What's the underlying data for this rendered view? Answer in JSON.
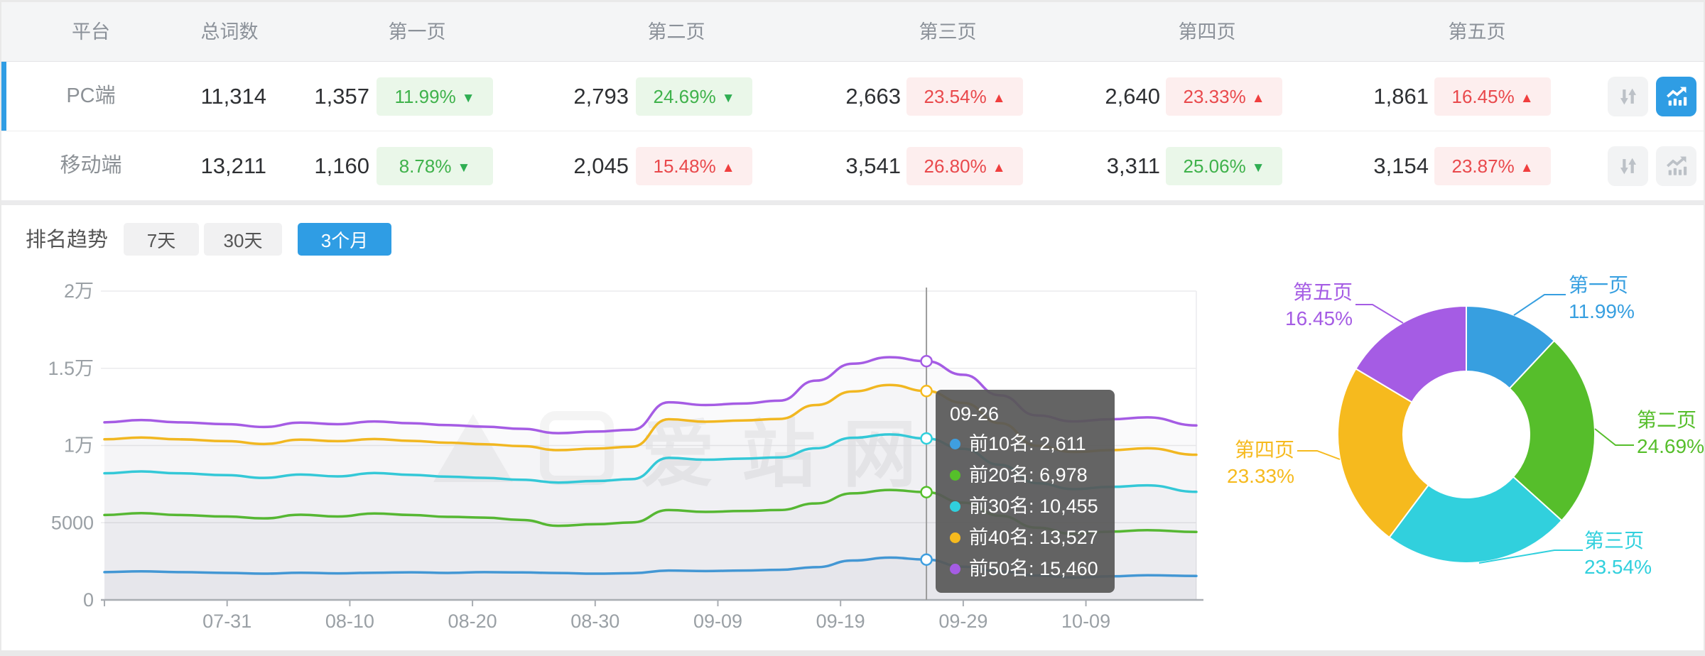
{
  "table": {
    "columns": [
      "平台",
      "总词数",
      "第一页",
      "第二页",
      "第三页",
      "第四页",
      "第五页"
    ],
    "rows": [
      {
        "platform": "PC端",
        "total": "11,314",
        "state": "active",
        "chart_btn_state": "active",
        "pages": [
          {
            "count": "1,357",
            "pct": "11.99%",
            "dir": "down",
            "arrow": "▼"
          },
          {
            "count": "2,793",
            "pct": "24.69%",
            "dir": "down",
            "arrow": "▼"
          },
          {
            "count": "2,663",
            "pct": "23.54%",
            "dir": "up",
            "arrow": "▲"
          },
          {
            "count": "2,640",
            "pct": "23.33%",
            "dir": "up",
            "arrow": "▲"
          },
          {
            "count": "1,861",
            "pct": "16.45%",
            "dir": "up",
            "arrow": "▲"
          }
        ]
      },
      {
        "platform": "移动端",
        "total": "13,211",
        "state": "",
        "chart_btn_state": "",
        "pages": [
          {
            "count": "1,160",
            "pct": "8.78%",
            "dir": "down",
            "arrow": "▼"
          },
          {
            "count": "2,045",
            "pct": "15.48%",
            "dir": "up",
            "arrow": "▲"
          },
          {
            "count": "3,541",
            "pct": "26.80%",
            "dir": "up",
            "arrow": "▲"
          },
          {
            "count": "3,311",
            "pct": "25.06%",
            "dir": "down",
            "arrow": "▼"
          },
          {
            "count": "3,154",
            "pct": "23.87%",
            "dir": "up",
            "arrow": "▲"
          }
        ]
      }
    ]
  },
  "trend": {
    "title": "排名趋势",
    "tabs": [
      {
        "label": "7天",
        "state": ""
      },
      {
        "label": "30天",
        "state": ""
      },
      {
        "label": "3个月",
        "state": "active"
      }
    ]
  },
  "tooltip": {
    "title": "09-26",
    "rows": [
      {
        "label": "前10名",
        "value": "2,611",
        "num": 2611,
        "color": "#3f9fe0"
      },
      {
        "label": "前20名",
        "value": "6,978",
        "num": 6978,
        "color": "#55c02a"
      },
      {
        "label": "前30名",
        "value": "10,455",
        "num": 10455,
        "color": "#30d0dd"
      },
      {
        "label": "前40名",
        "value": "13,527",
        "num": 13527,
        "color": "#f6ba1e"
      },
      {
        "label": "前50名",
        "value": "15,460",
        "num": 15460,
        "color": "#a55ce4"
      }
    ]
  },
  "watermark": "爱站网",
  "colors": {
    "accent_blue": "#2f9de4",
    "grid": "#ebebed",
    "axis": "#a9adb2",
    "tick_text": "#9aa0a5"
  },
  "chart_data": [
    {
      "type": "line",
      "title": "排名趋势 3个月 (ranking trend, 3 months)",
      "ylim": [
        0,
        20000
      ],
      "yticks": [
        "0",
        "5000",
        "1万",
        "1.5万",
        "2万"
      ],
      "xticks": [
        "07-31",
        "08-10",
        "08-20",
        "08-30",
        "09-09",
        "09-19",
        "09-29",
        "10-09"
      ],
      "xtick_days": [
        10,
        20,
        30,
        40,
        50,
        60,
        70,
        80
      ],
      "crosshair_date": "09-26",
      "crosshair_day": 67,
      "x_dates": [
        "07-21",
        "07-24",
        "07-27",
        "07-31",
        "08-03",
        "08-06",
        "08-09",
        "08-12",
        "08-15",
        "08-18",
        "08-21",
        "08-24",
        "08-27",
        "08-30",
        "09-02",
        "09-05",
        "09-08",
        "09-11",
        "09-14",
        "09-17",
        "09-20",
        "09-23",
        "09-26",
        "09-29",
        "10-02",
        "10-05",
        "10-08",
        "10-11",
        "10-14",
        "10-18"
      ],
      "x_days": [
        0,
        3,
        6,
        10,
        13,
        16,
        19,
        22,
        25,
        28,
        31,
        34,
        37,
        40,
        43,
        46,
        49,
        52,
        55,
        58,
        61,
        64,
        67,
        70,
        73,
        76,
        79,
        82,
        85,
        89
      ],
      "series": [
        {
          "name": "前10名",
          "color": "#3f9fe0",
          "values": [
            1800,
            1850,
            1800,
            1750,
            1700,
            1760,
            1720,
            1760,
            1790,
            1750,
            1800,
            1780,
            1740,
            1700,
            1730,
            1900,
            1870,
            1900,
            1950,
            2120,
            2550,
            2740,
            2611,
            2150,
            1850,
            1580,
            1450,
            1530,
            1600,
            1550
          ]
        },
        {
          "name": "前20名",
          "color": "#55c02a",
          "values": [
            5500,
            5620,
            5500,
            5400,
            5280,
            5520,
            5400,
            5600,
            5500,
            5380,
            5330,
            5180,
            4800,
            4900,
            5020,
            5820,
            5700,
            5760,
            5820,
            6250,
            6900,
            7120,
            6978,
            6300,
            5450,
            4680,
            4280,
            4420,
            4520,
            4400
          ]
        },
        {
          "name": "前30名",
          "color": "#30d0dd",
          "values": [
            8200,
            8320,
            8200,
            8080,
            7900,
            8120,
            8000,
            8220,
            8100,
            7980,
            7900,
            7780,
            7600,
            7700,
            7820,
            9200,
            9080,
            9150,
            9230,
            9820,
            10500,
            10720,
            10455,
            9780,
            8750,
            7560,
            7180,
            7320,
            7420,
            7000
          ]
        },
        {
          "name": "前40名",
          "color": "#f6ba1e",
          "values": [
            10400,
            10520,
            10400,
            10280,
            10100,
            10380,
            10280,
            10420,
            10300,
            10180,
            10080,
            9960,
            9700,
            9800,
            9920,
            11700,
            11540,
            11620,
            11720,
            12620,
            13500,
            13920,
            13527,
            12760,
            11450,
            9980,
            9580,
            9700,
            9820,
            9400
          ]
        },
        {
          "name": "前50名",
          "color": "#a55ce4",
          "values": [
            11500,
            11650,
            11500,
            11380,
            11200,
            11480,
            11380,
            11560,
            11440,
            11320,
            11220,
            11080,
            10800,
            10900,
            11020,
            12800,
            12620,
            12720,
            12900,
            14200,
            15300,
            15720,
            15460,
            14580,
            13250,
            11950,
            11560,
            11700,
            11820,
            11300
          ]
        }
      ]
    },
    {
      "type": "pie",
      "title": "页面分布 (page distribution donut)",
      "slices": [
        {
          "label": "第一页",
          "pct": "11.99%",
          "value": 11.99,
          "color": "#379fe0"
        },
        {
          "label": "第二页",
          "pct": "24.69%",
          "value": 24.69,
          "color": "#56be2b"
        },
        {
          "label": "第三页",
          "pct": "23.54%",
          "value": 23.54,
          "color": "#31d0dd"
        },
        {
          "label": "第四页",
          "pct": "23.33%",
          "value": 23.33,
          "color": "#f6ba1e"
        },
        {
          "label": "第五页",
          "pct": "16.45%",
          "value": 16.45,
          "color": "#a55ce4"
        }
      ]
    }
  ]
}
